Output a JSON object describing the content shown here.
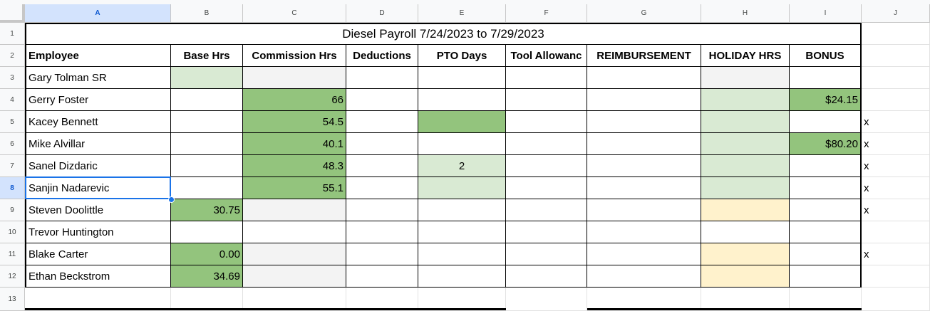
{
  "columns": [
    "A",
    "B",
    "C",
    "D",
    "E",
    "F",
    "G",
    "H",
    "I",
    "J"
  ],
  "rows": [
    "1",
    "2",
    "3",
    "4",
    "5",
    "6",
    "7",
    "8",
    "9",
    "10",
    "11",
    "12",
    "13"
  ],
  "title": "Diesel Payroll 7/24/2023 to 7/29/2023",
  "headers": [
    "Employee",
    "Base Hrs",
    "Commission Hrs",
    "Deductions",
    "PTO Days",
    "Tool Allowanc",
    "REIMBURSEMENT",
    "HOLIDAY HRS",
    "BONUS"
  ],
  "employees": [
    {
      "name": "Gary Tolman SR",
      "base": "",
      "commission": "",
      "pto": "",
      "bonus": "",
      "mark": ""
    },
    {
      "name": "Gerry Foster",
      "base": "",
      "commission": "66",
      "pto": "",
      "bonus": "$24.15",
      "mark": ""
    },
    {
      "name": "Kacey Bennett",
      "base": "",
      "commission": "54.5",
      "pto": "",
      "bonus": "",
      "mark": "x"
    },
    {
      "name": "Mike Alvillar",
      "base": "",
      "commission": "40.1",
      "pto": "",
      "bonus": "$80.20",
      "mark": "x"
    },
    {
      "name": "Sanel Dizdaric",
      "base": "",
      "commission": "48.3",
      "pto": "2",
      "bonus": "",
      "mark": "x"
    },
    {
      "name": "Sanjin Nadarevic",
      "base": "",
      "commission": "55.1",
      "pto": "",
      "bonus": "",
      "mark": "x"
    },
    {
      "name": "Steven Doolittle",
      "base": "30.75",
      "commission": "",
      "pto": "",
      "bonus": "",
      "mark": "x"
    },
    {
      "name": "Trevor Huntington",
      "base": "",
      "commission": "",
      "pto": "",
      "bonus": "",
      "mark": ""
    },
    {
      "name": "Blake Carter",
      "base": "0.00",
      "commission": "",
      "pto": "",
      "bonus": "",
      "mark": "x"
    },
    {
      "name": "Ethan Beckstrom",
      "base": "34.69",
      "commission": "",
      "pto": "",
      "bonus": "",
      "mark": ""
    }
  ],
  "colors": {
    "green_dark": "#93c47d",
    "green_light": "#d9ead3",
    "gray_light": "#f3f3f3",
    "yellow_light": "#fff2cc",
    "selection": "#1a73e8"
  }
}
